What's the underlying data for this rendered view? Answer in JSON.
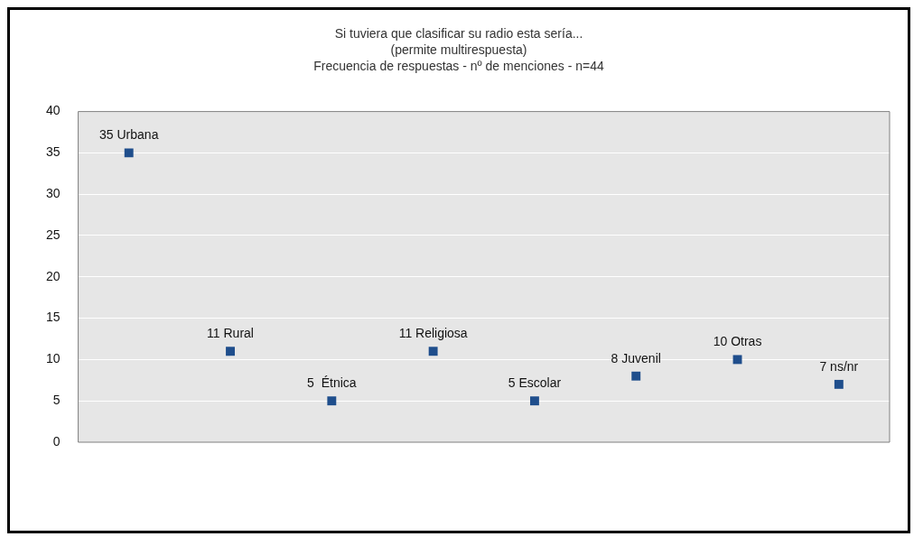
{
  "chart_data": {
    "type": "scatter",
    "title": [
      "Si tuviera que clasificar su radio esta sería...",
      "(permite multirespuesta)",
      "Frecuencia de respuestas - nº de menciones - n=44"
    ],
    "categories": [
      null,
      null,
      null,
      null,
      null,
      null,
      null,
      null
    ],
    "values": [
      35,
      11,
      5,
      11,
      5,
      8,
      10,
      7
    ],
    "value_labels": [
      "35 Urbana",
      "11 Rural",
      "5  Étnica",
      "11 Religiosa",
      "5 Escolar",
      "8 Juvenil",
      "10 Otras",
      "7 ns/nr"
    ],
    "color": "#1f4e8c",
    "marker": "square",
    "ylim": [
      0,
      40
    ],
    "yticks": [
      0,
      5,
      10,
      15,
      20,
      25,
      30,
      35,
      40
    ],
    "grid": "y",
    "legend": false,
    "tick_labels": "y"
  }
}
